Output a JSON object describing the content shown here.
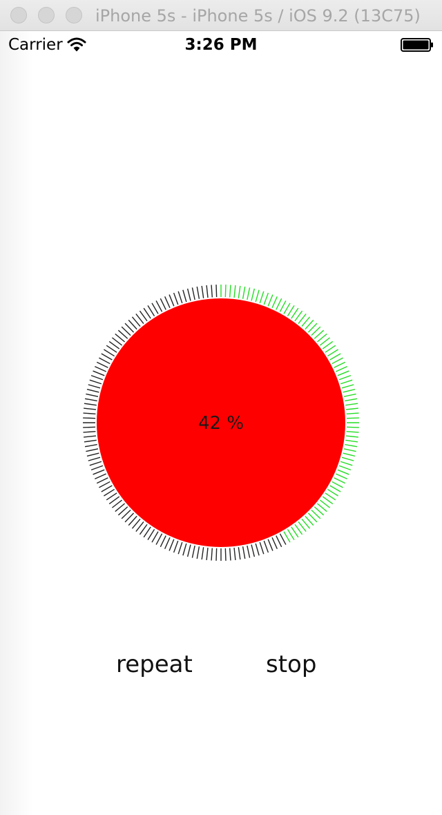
{
  "window": {
    "title": "iPhone 5s - iPhone 5s / iOS 9.2 (13C75)"
  },
  "status_bar": {
    "carrier": "Carrier",
    "time": "3:26 PM",
    "icons": [
      "wifi-icon",
      "battery-icon"
    ]
  },
  "progress": {
    "value": 42,
    "label": "42 %",
    "fill_color": "#ff0000",
    "done_tick_color": "#22dd22",
    "remaining_tick_color": "#222222"
  },
  "buttons": {
    "repeat_label": "repeat",
    "stop_label": "stop"
  }
}
